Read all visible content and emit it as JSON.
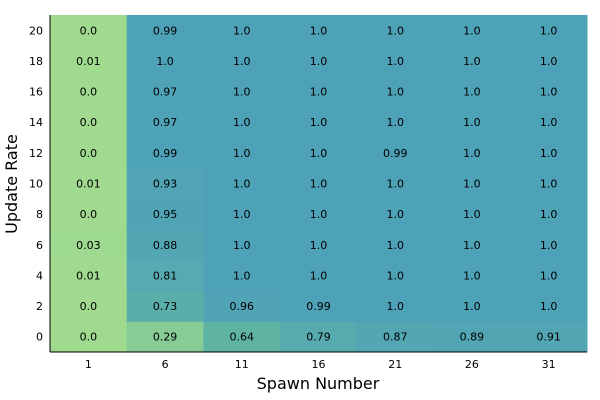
{
  "chart_data": {
    "type": "heatmap",
    "title": "",
    "xlabel": "Spawn Number",
    "ylabel": "Update Rate",
    "x": [
      1,
      6,
      11,
      16,
      21,
      26,
      31
    ],
    "y": [
      0,
      2,
      4,
      6,
      8,
      10,
      12,
      14,
      16,
      18,
      20
    ],
    "x_tick_labels": [
      "1",
      "6",
      "11",
      "16",
      "21",
      "26",
      "31"
    ],
    "y_tick_labels": [
      "0",
      "2",
      "4",
      "6",
      "8",
      "10",
      "12",
      "14",
      "16",
      "18",
      "20"
    ],
    "values": [
      [
        "0.0",
        "0.29",
        "0.64",
        "0.79",
        "0.87",
        "0.89",
        "0.91"
      ],
      [
        "0.0",
        "0.73",
        "0.96",
        "0.99",
        "1.0",
        "1.0",
        "1.0"
      ],
      [
        "0.01",
        "0.81",
        "1.0",
        "1.0",
        "1.0",
        "1.0",
        "1.0"
      ],
      [
        "0.03",
        "0.88",
        "1.0",
        "1.0",
        "1.0",
        "1.0",
        "1.0"
      ],
      [
        "0.0",
        "0.95",
        "1.0",
        "1.0",
        "1.0",
        "1.0",
        "1.0"
      ],
      [
        "0.01",
        "0.93",
        "1.0",
        "1.0",
        "1.0",
        "1.0",
        "1.0"
      ],
      [
        "0.0",
        "0.99",
        "1.0",
        "1.0",
        "0.99",
        "1.0",
        "1.0"
      ],
      [
        "0.0",
        "0.97",
        "1.0",
        "1.0",
        "1.0",
        "1.0",
        "1.0"
      ],
      [
        "0.0",
        "0.97",
        "1.0",
        "1.0",
        "1.0",
        "1.0",
        "1.0"
      ],
      [
        "0.01",
        "1.0",
        "1.0",
        "1.0",
        "1.0",
        "1.0",
        "1.0"
      ],
      [
        "0.0",
        "0.99",
        "1.0",
        "1.0",
        "1.0",
        "1.0",
        "1.0"
      ]
    ],
    "color_range": [
      0,
      1
    ],
    "colormap": [
      "#a0da8e",
      "#8fd291",
      "#7ac598",
      "#60b59f",
      "#56aab0",
      "#4ea2b7"
    ],
    "grid": false
  }
}
